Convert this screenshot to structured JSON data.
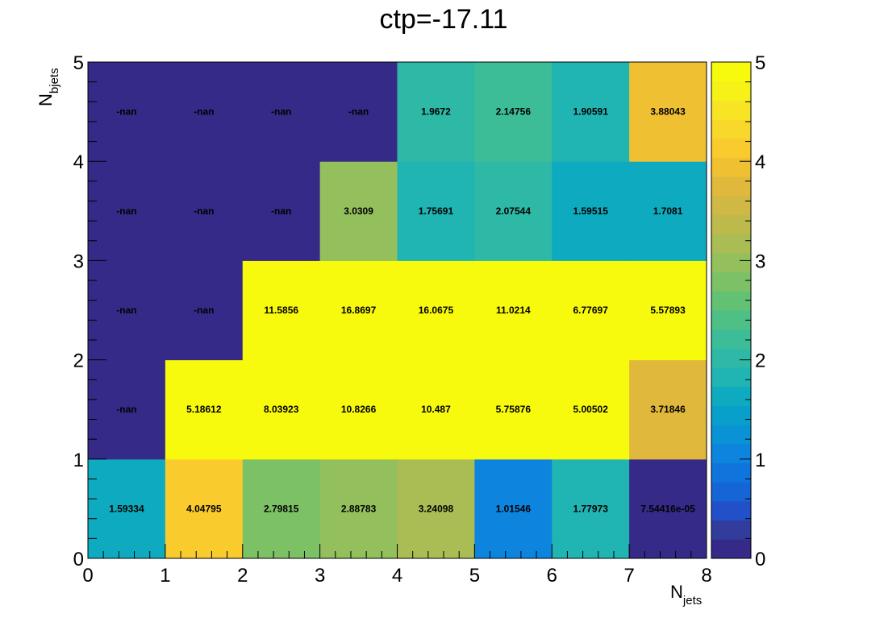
{
  "chart_data": {
    "type": "heatmap",
    "title": "ctp=-17.11",
    "xlabel_main": "N",
    "xlabel_sub": "jets",
    "ylabel_main": "N",
    "ylabel_sub": "bjets",
    "xlim": [
      0,
      8
    ],
    "ylim": [
      0,
      5
    ],
    "zlim": [
      0,
      5
    ],
    "x_ticks": [
      "0",
      "1",
      "2",
      "3",
      "4",
      "5",
      "6",
      "7",
      "8"
    ],
    "y_ticks": [
      "0",
      "1",
      "2",
      "3",
      "4",
      "5"
    ],
    "z_ticks": [
      "0",
      "1",
      "2",
      "3",
      "4",
      "5"
    ],
    "x_bins": [
      "0-1",
      "1-2",
      "2-3",
      "3-4",
      "4-5",
      "5-6",
      "6-7",
      "7-8"
    ],
    "y_bins": [
      "0-1",
      "1-2",
      "2-3",
      "3-4",
      "4-5"
    ],
    "cells": [
      [
        "1.59334",
        "4.04795",
        "2.79815",
        "2.88783",
        "3.24098",
        "1.01546",
        "1.77973",
        "7.54416e-05"
      ],
      [
        "-nan",
        "5.18612",
        "8.03923",
        "10.8266",
        "10.487",
        "5.75876",
        "5.00502",
        "3.71846"
      ],
      [
        "-nan",
        "-nan",
        "11.5856",
        "16.8697",
        "16.0675",
        "11.0214",
        "6.77697",
        "5.57893"
      ],
      [
        "-nan",
        "-nan",
        "-nan",
        "3.0309",
        "1.75691",
        "2.07544",
        "1.59515",
        "1.7081"
      ],
      [
        "-nan",
        "-nan",
        "-nan",
        "-nan",
        "1.9672",
        "2.14756",
        "1.90591",
        "3.88043"
      ]
    ],
    "palette": [
      "#352a87",
      "#323c9a",
      "#2250c9",
      "#1565d7",
      "#0f74dc",
      "#0d84dd",
      "#0993d5",
      "#08a0cb",
      "#0eabc0",
      "#20b4b3",
      "#2db9a6",
      "#3cbd98",
      "#4ec086",
      "#63c174",
      "#7dc166",
      "#94bf5d",
      "#aabd54",
      "#bdba4b",
      "#cfb844",
      "#e0b93c",
      "#f0c033",
      "#f9cb2d",
      "#f8d82a",
      "#f7e525",
      "#f6f117",
      "#f8fa0d"
    ],
    "nan_color": "#352a87",
    "overflow_color": "#f8fa0d"
  }
}
